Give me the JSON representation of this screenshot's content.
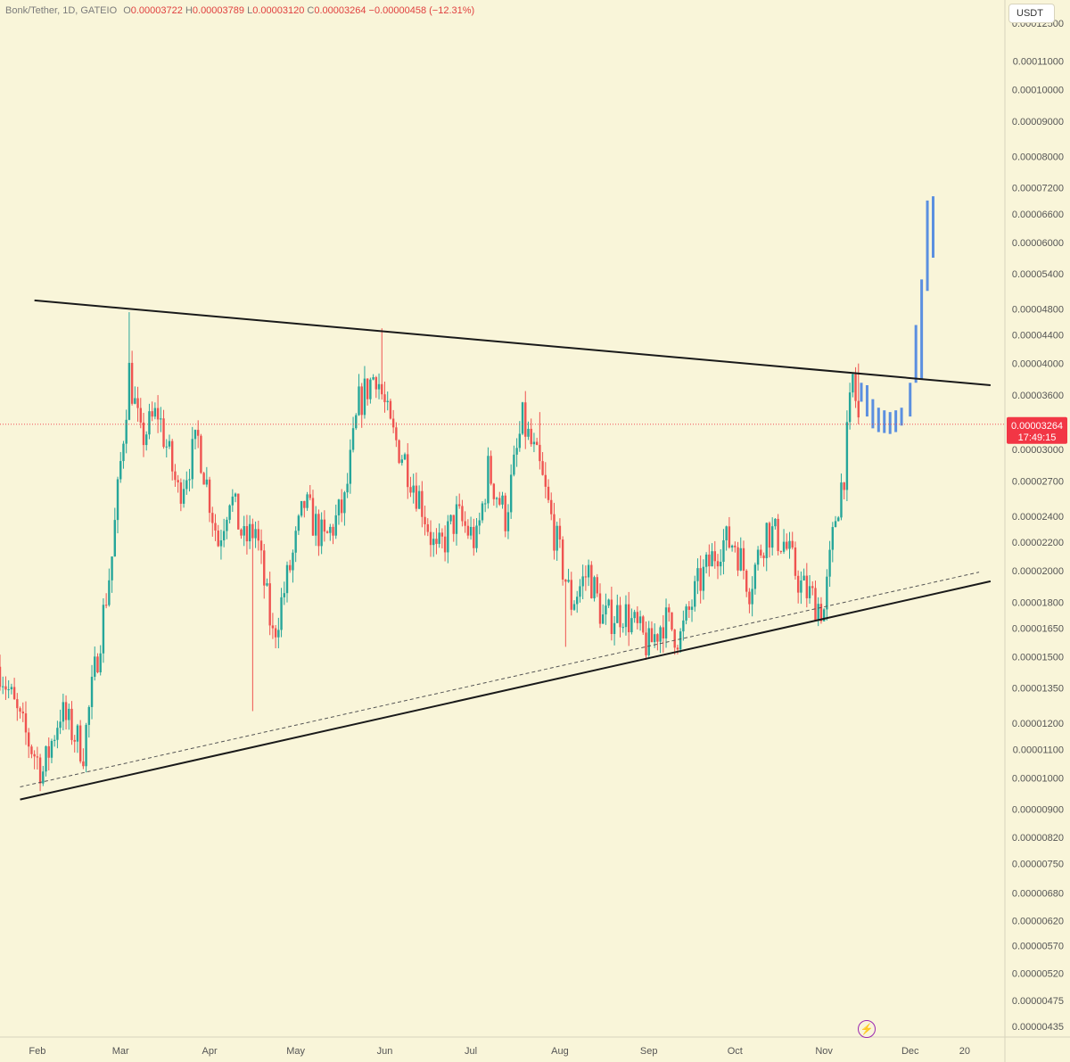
{
  "header": {
    "symbol": "Bonk/Tether, 1D, GATEIO",
    "o_label": "O",
    "o_value": "0.00003722",
    "h_label": "H",
    "h_value": "0.00003789",
    "l_label": "L",
    "l_value": "0.00003120",
    "c_label": "C",
    "c_value": "0.00003264",
    "change": "−0.00000458 (−12.31%)"
  },
  "currency_button": "USDT",
  "price_badge": {
    "price": "0.00003264",
    "countdown": "17:49:15"
  },
  "colors": {
    "background": "#f9f5d9",
    "up": "#26a69a",
    "down": "#ef5350",
    "projection": "#5b8fe0",
    "trendline": "#1a1a1a",
    "badge": "#f23645",
    "bolt": "#9c27b0"
  },
  "icons": {
    "bolt": "lightning-bolt-icon"
  },
  "chart_data": {
    "type": "candlestick",
    "y_scale": "log",
    "ylim": [
      4.2e-06,
      0.000135
    ],
    "y_ticks": [
      "0.00012500",
      "0.00011000",
      "0.00010000",
      "0.00009000",
      "0.00008000",
      "0.00007200",
      "0.00006600",
      "0.00006000",
      "0.00005400",
      "0.00004800",
      "0.00004400",
      "0.00004000",
      "0.00003600",
      "0.00003000",
      "0.00002700",
      "0.00002400",
      "0.00002200",
      "0.00002000",
      "0.00001800",
      "0.00001650",
      "0.00001500",
      "0.00001350",
      "0.00001200",
      "0.00001100",
      "0.00001000",
      "0.00000900",
      "0.00000820",
      "0.00000750",
      "0.00000680",
      "0.00000620",
      "0.00000570",
      "0.00000520",
      "0.00000475",
      "0.00000435"
    ],
    "x_ticks": [
      "Feb",
      "Mar",
      "Apr",
      "May",
      "Jun",
      "Jul",
      "Aug",
      "Sep",
      "Oct",
      "Nov",
      "Dec",
      "20"
    ],
    "x_tick_dates": [
      "2024-02-01",
      "2024-03-01",
      "2024-04-01",
      "2024-05-01",
      "2024-06-01",
      "2024-07-01",
      "2024-08-01",
      "2024-09-01",
      "2024-10-01",
      "2024-11-01",
      "2024-12-01",
      "2024-12-20"
    ],
    "date_range": [
      "2024-01-19",
      "2025-01-03"
    ],
    "price_path_dates": [
      "2024-01-19",
      "2024-01-26",
      "2024-02-03",
      "2024-02-09",
      "2024-02-17",
      "2024-02-27",
      "2024-03-04",
      "2024-03-08",
      "2024-03-14",
      "2024-03-21",
      "2024-03-28",
      "2024-04-04",
      "2024-04-08",
      "2024-04-13",
      "2024-04-17",
      "2024-04-23",
      "2024-04-30",
      "2024-05-04",
      "2024-05-11",
      "2024-05-18",
      "2024-05-23",
      "2024-05-29",
      "2024-06-03",
      "2024-06-08",
      "2024-06-14",
      "2024-06-19",
      "2024-06-26",
      "2024-07-03",
      "2024-07-07",
      "2024-07-13",
      "2024-07-19",
      "2024-07-25",
      "2024-08-01",
      "2024-08-05",
      "2024-08-11",
      "2024-08-16",
      "2024-08-23",
      "2024-09-01",
      "2024-09-06",
      "2024-09-12",
      "2024-09-18",
      "2024-09-26",
      "2024-10-01",
      "2024-10-06",
      "2024-10-12",
      "2024-10-18",
      "2024-10-24",
      "2024-11-01",
      "2024-11-05",
      "2024-11-08",
      "2024-11-11",
      "2024-11-13"
    ],
    "price_path": [
      1.45e-05,
      1.2e-05,
      1.02e-05,
      1.25e-05,
      1.1e-05,
      2.1e-05,
      3.9e-05,
      3.1e-05,
      3.4e-05,
      2.6e-05,
      3.1e-05,
      2.2e-05,
      2.6e-05,
      2.2e-05,
      2.3e-05,
      1.6e-05,
      2.1e-05,
      2.5e-05,
      2.2e-05,
      2.5e-05,
      3.5e-05,
      3.9e-05,
      3.2e-05,
      2.9e-05,
      2.5e-05,
      2.1e-05,
      2.4e-05,
      2.2e-05,
      2.8e-05,
      2.4e-05,
      3.3e-05,
      2.8e-05,
      2.1e-05,
      1.8e-05,
      2e-05,
      1.7e-05,
      1.75e-05,
      1.55e-05,
      1.7e-05,
      1.6e-05,
      1.9e-05,
      2.2e-05,
      2.2e-05,
      1.9e-05,
      2.3e-05,
      2.2e-05,
      1.9e-05,
      1.75e-05,
      2.4e-05,
      2.8e-05,
      3.8e-05,
      3.3e-05
    ],
    "spikes": [
      {
        "date": "2024-03-04",
        "high": 4.75e-05
      },
      {
        "date": "2024-05-31",
        "high": 4.5e-05
      },
      {
        "date": "2024-04-16",
        "low": 1.25e-05
      },
      {
        "date": "2024-07-25",
        "high": 3.4e-05
      },
      {
        "date": "2024-08-03",
        "low": 1.55e-05
      },
      {
        "date": "2024-11-13",
        "high": 4e-05
      },
      {
        "date": "2024-09-06",
        "low": 1.52e-05
      }
    ],
    "projection": {
      "dates": [
        "2024-11-14",
        "2024-11-16",
        "2024-11-18",
        "2024-11-20",
        "2024-11-22",
        "2024-11-24",
        "2024-11-26",
        "2024-11-28",
        "2024-12-01",
        "2024-12-03",
        "2024-12-05",
        "2024-12-07",
        "2024-12-09"
      ],
      "highs": [
        3.75e-05,
        3.72e-05,
        3.55e-05,
        3.45e-05,
        3.42e-05,
        3.4e-05,
        3.42e-05,
        3.45e-05,
        3.75e-05,
        4.55e-05,
        5.3e-05,
        6.9e-05,
        7e-05
      ],
      "lows": [
        3.52e-05,
        3.35e-05,
        3.22e-05,
        3.18e-05,
        3.17e-05,
        3.16e-05,
        3.18e-05,
        3.25e-05,
        3.35e-05,
        3.75e-05,
        3.8e-05,
        5.1e-05,
        5.7e-05
      ]
    },
    "trendlines": [
      {
        "name": "resistance",
        "from": {
          "date": "2024-01-31",
          "price": 4.94e-05
        },
        "to": {
          "date": "2024-12-29",
          "price": 3.72e-05
        }
      },
      {
        "name": "support",
        "from": {
          "date": "2024-01-26",
          "price": 9.3e-06
        },
        "to": {
          "date": "2024-12-29",
          "price": 1.93e-05
        }
      },
      {
        "name": "support-dashed",
        "from": {
          "date": "2024-01-26",
          "price": 9.7e-06
        },
        "to": {
          "date": "2024-12-25",
          "price": 1.99e-05
        }
      }
    ],
    "current_price": 3.264e-05
  }
}
